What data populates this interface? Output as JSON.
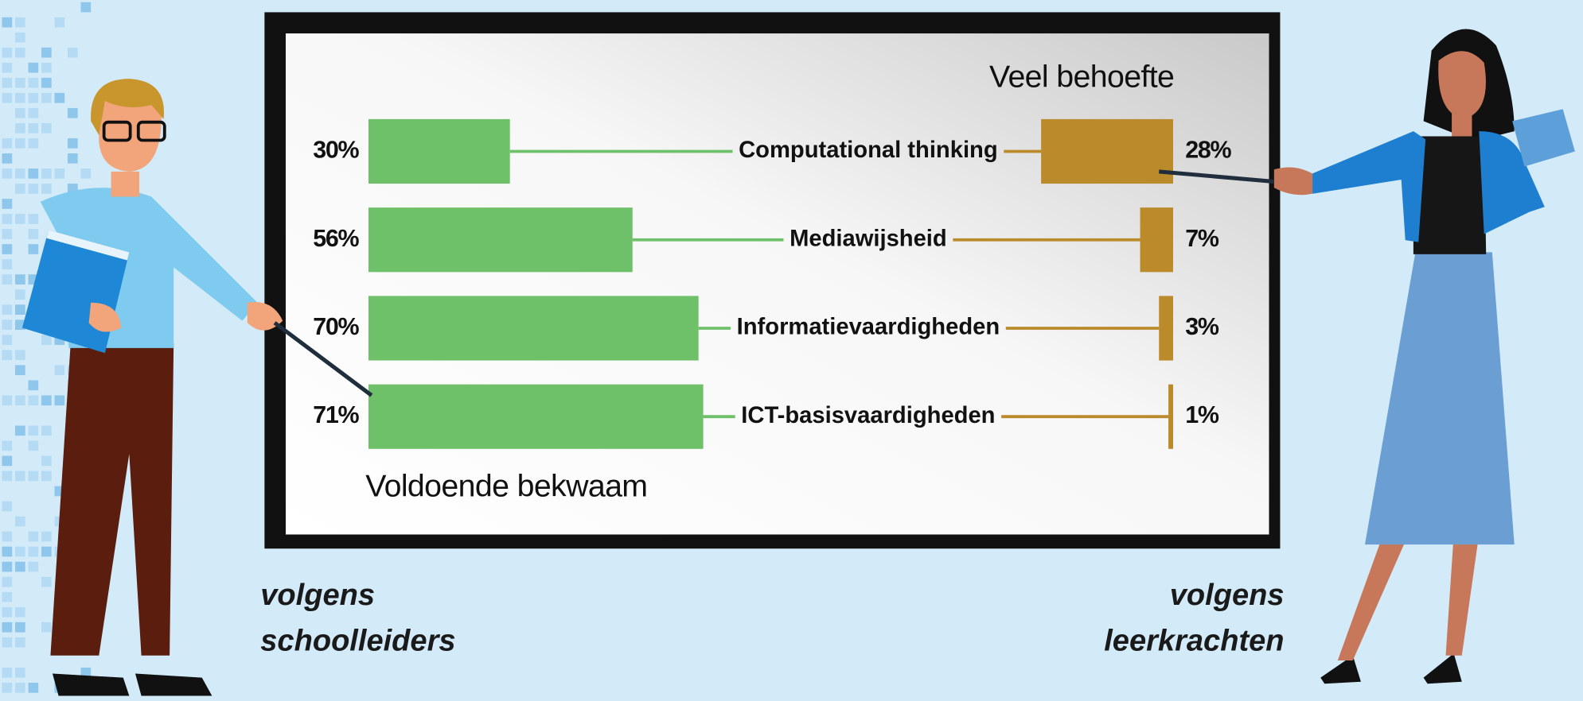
{
  "chart_data": {
    "type": "butterfly",
    "categories": [
      "Computational thinking",
      "Mediawijsheid",
      "Informatievaardigheden",
      "ICT-basisvaardigheden"
    ],
    "series": [
      {
        "name": "Voldoende bekwaam",
        "color": "#6fc169",
        "values": [
          30,
          56,
          70,
          71
        ],
        "value_labels": [
          "30%",
          "56%",
          "70%",
          "71%"
        ]
      },
      {
        "name": "Veel behoefte",
        "color": "#bb8a2a",
        "values": [
          28,
          7,
          3,
          1
        ],
        "value_labels": [
          "28%",
          "7%",
          "3%",
          "1%"
        ]
      }
    ],
    "left_caption": [
      "volgens",
      "schoolleiders"
    ],
    "right_caption": [
      "volgens",
      "leerkrachten"
    ]
  }
}
